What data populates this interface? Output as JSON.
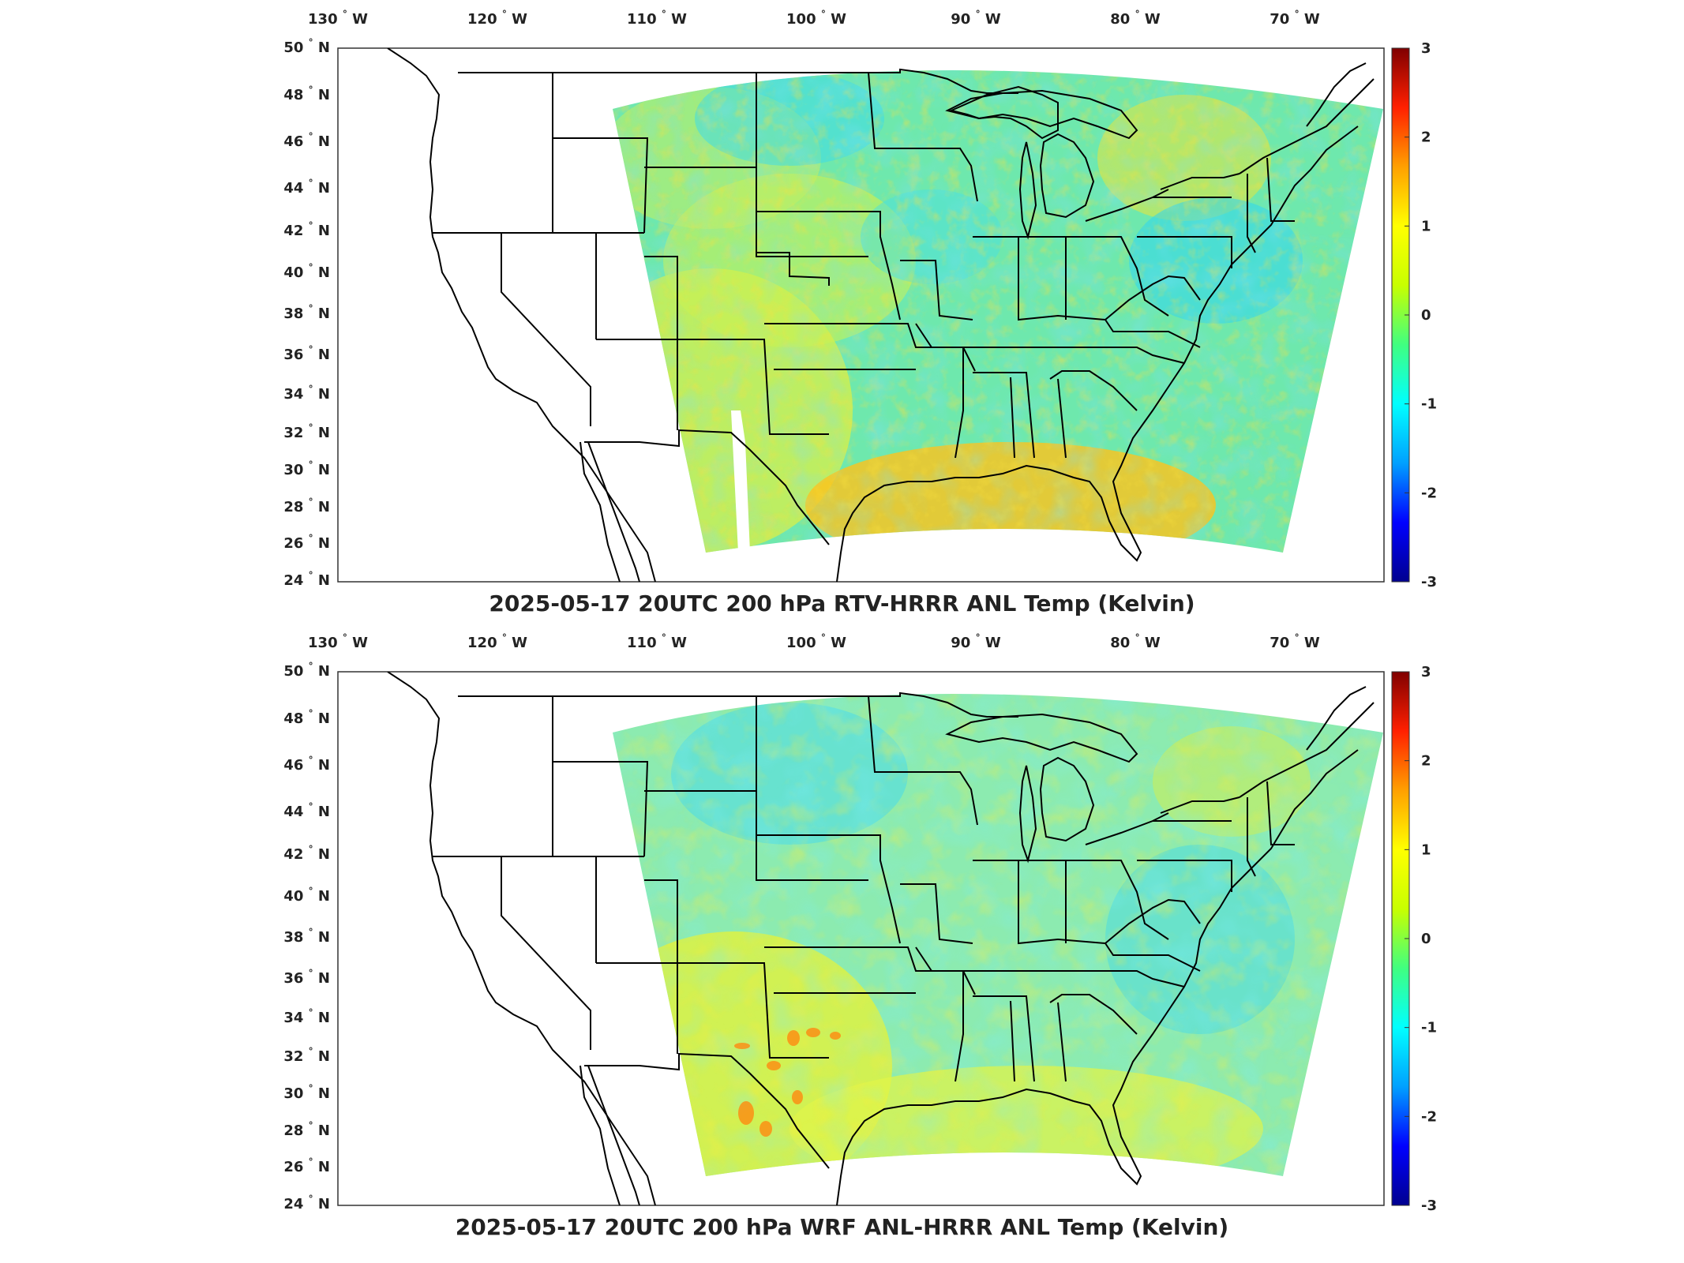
{
  "panels": [
    {
      "title": "2025-05-17 20UTC 200 hPa RTV-HRRR ANL Temp (Kelvin)",
      "colorbar_ticks": [
        "3",
        "2",
        "1",
        "0",
        "-1",
        "-2",
        "-3"
      ],
      "field_style": "rtv"
    },
    {
      "title": "2025-05-17 20UTC 200 hPa WRF ANL-HRRR ANL Temp (Kelvin)",
      "colorbar_ticks": [
        "3",
        "2",
        "1",
        "0",
        "-1",
        "-2",
        "-3"
      ],
      "field_style": "wrf"
    }
  ],
  "lon_labels": [
    "130",
    "120",
    "110",
    "100",
    "90",
    "80",
    "70"
  ],
  "lon_suffix": "W",
  "lat_labels": [
    "50",
    "48",
    "46",
    "44",
    "42",
    "40",
    "38",
    "36",
    "34",
    "32",
    "30",
    "28",
    "26",
    "24"
  ],
  "lat_suffix": "N",
  "colormap": [
    "#00008f",
    "#0000ff",
    "#00a0ff",
    "#00ffff",
    "#40ff80",
    "#c8ff00",
    "#ffff00",
    "#ffa000",
    "#ff2000",
    "#800000"
  ],
  "colors": {
    "field_background": "#5fe8b5",
    "border": "#000000"
  }
}
